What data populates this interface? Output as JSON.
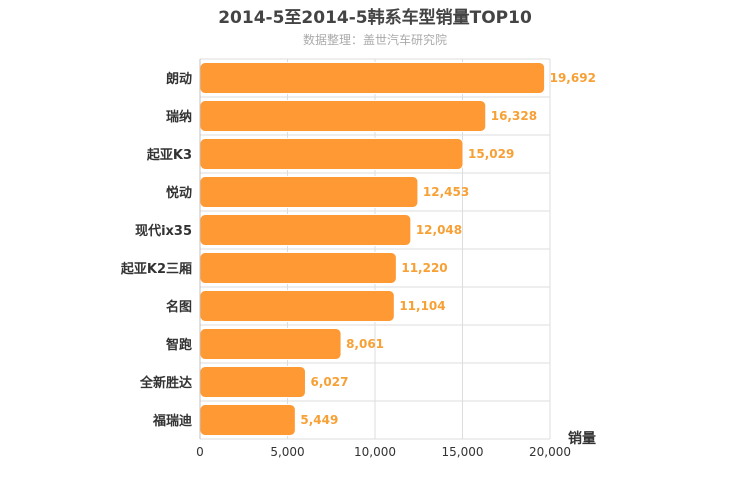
{
  "chart_data": {
    "type": "bar",
    "orientation": "horizontal",
    "title": "2014-5至2014-5韩系车型销量TOP10",
    "subtitle": "数据整理：盖世汽车研究院",
    "categories": [
      "朗动",
      "瑞纳",
      "起亚K3",
      "悦动",
      "现代ix35",
      "起亚K2三厢",
      "名图",
      "智跑",
      "全新胜达",
      "福瑞迪"
    ],
    "values": [
      19692,
      16328,
      15029,
      12453,
      12048,
      11220,
      11104,
      8061,
      6027,
      5449
    ],
    "value_labels": [
      "19,692",
      "16,328",
      "15,029",
      "12,453",
      "12,048",
      "11,220",
      "11,104",
      "8,061",
      "6,027",
      "5,449"
    ],
    "xlabel": "销量",
    "xlim": [
      0,
      20000
    ],
    "ticks": [
      0,
      5000,
      10000,
      15000,
      20000
    ],
    "tick_labels": [
      "0",
      "5,000",
      "10,000",
      "15,000",
      "20,000"
    ],
    "grid": true,
    "bar_color": "#ff9933",
    "label_color": "#f7a035"
  }
}
